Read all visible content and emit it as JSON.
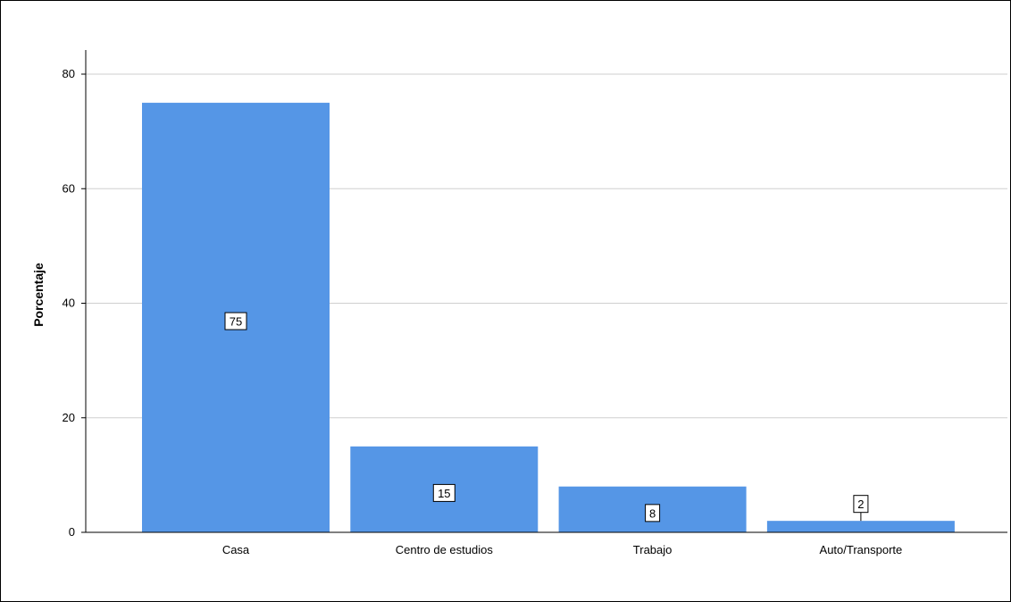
{
  "chart_data": {
    "type": "bar",
    "categories": [
      "Casa",
      "Centro de estudios",
      "Trabajo",
      "Auto/Transporte"
    ],
    "values": [
      75,
      15,
      8,
      2
    ],
    "data_labels": [
      "75",
      "15",
      "8",
      "2"
    ],
    "title": "",
    "xlabel": "",
    "ylabel": "Porcentaje",
    "ylim": [
      0,
      80
    ],
    "yticks": [
      0,
      20,
      40,
      60,
      80
    ],
    "grid": true,
    "bar_color": "#5596e6"
  }
}
